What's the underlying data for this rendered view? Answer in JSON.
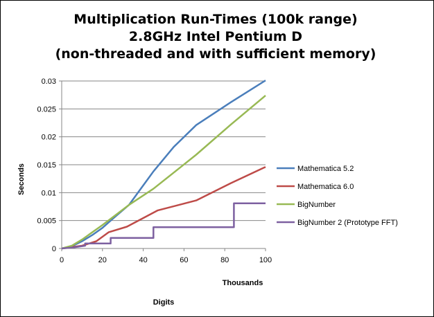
{
  "chart_data": {
    "type": "line",
    "title_lines": [
      "Multiplication Run-Times (100k range)",
      "2.8GHz Intel Pentium D",
      "(non-threaded and with sufficient memory)"
    ],
    "xlabel": "Digits",
    "x_units_label": "Thousands",
    "ylabel": "Seconds",
    "xlim": [
      0,
      100
    ],
    "ylim": [
      0,
      0.03
    ],
    "x_ticks": [
      0,
      20,
      40,
      60,
      80,
      100
    ],
    "x_tick_labels": [
      "0",
      "20",
      "40",
      "60",
      "80",
      "100"
    ],
    "y_ticks": [
      0,
      0.005,
      0.01,
      0.015,
      0.02,
      0.025,
      0.03
    ],
    "y_tick_labels": [
      "0",
      "0.005",
      "0.01",
      "0.015",
      "0.02",
      "0.025",
      "0.03"
    ],
    "grid": "horizontal",
    "legend_position": "right",
    "series": [
      {
        "name": "Mathematica 5.2",
        "color": "#4a7ebb",
        "points": [
          [
            0,
            0
          ],
          [
            5,
            0.0004
          ],
          [
            10,
            0.0013
          ],
          [
            15,
            0.0024
          ],
          [
            20,
            0.0037
          ],
          [
            25,
            0.0053
          ],
          [
            33,
            0.0078
          ],
          [
            45,
            0.0138
          ],
          [
            55,
            0.0182
          ],
          [
            66,
            0.0221
          ],
          [
            83,
            0.0262
          ],
          [
            100,
            0.0301
          ]
        ]
      },
      {
        "name": "Mathematica 6.0",
        "color": "#be4b48",
        "points": [
          [
            0,
            0
          ],
          [
            10,
            0.0005
          ],
          [
            17,
            0.0013
          ],
          [
            23,
            0.0029
          ],
          [
            32,
            0.0039
          ],
          [
            47,
            0.0068
          ],
          [
            66,
            0.0086
          ],
          [
            83,
            0.0117
          ],
          [
            100,
            0.0146
          ]
        ]
      },
      {
        "name": "BigNumber",
        "color": "#98b954",
        "points": [
          [
            0,
            0
          ],
          [
            5,
            0.0005
          ],
          [
            10,
            0.0016
          ],
          [
            20,
            0.0042
          ],
          [
            33,
            0.0078
          ],
          [
            45,
            0.0107
          ],
          [
            55,
            0.0136
          ],
          [
            66,
            0.0168
          ],
          [
            83,
            0.0222
          ],
          [
            100,
            0.0274
          ]
        ]
      },
      {
        "name": "BigNumber 2 (Prototype FFT)",
        "color": "#7d60a0",
        "points": [
          [
            0,
            0
          ],
          [
            6,
            0.0002
          ],
          [
            11.5,
            0.0005
          ],
          [
            11.5,
            0.0009
          ],
          [
            24,
            0.0009
          ],
          [
            24,
            0.0019
          ],
          [
            45,
            0.0019
          ],
          [
            45,
            0.0038
          ],
          [
            84.5,
            0.0038
          ],
          [
            84.5,
            0.0081
          ],
          [
            100,
            0.0081
          ]
        ]
      }
    ]
  }
}
